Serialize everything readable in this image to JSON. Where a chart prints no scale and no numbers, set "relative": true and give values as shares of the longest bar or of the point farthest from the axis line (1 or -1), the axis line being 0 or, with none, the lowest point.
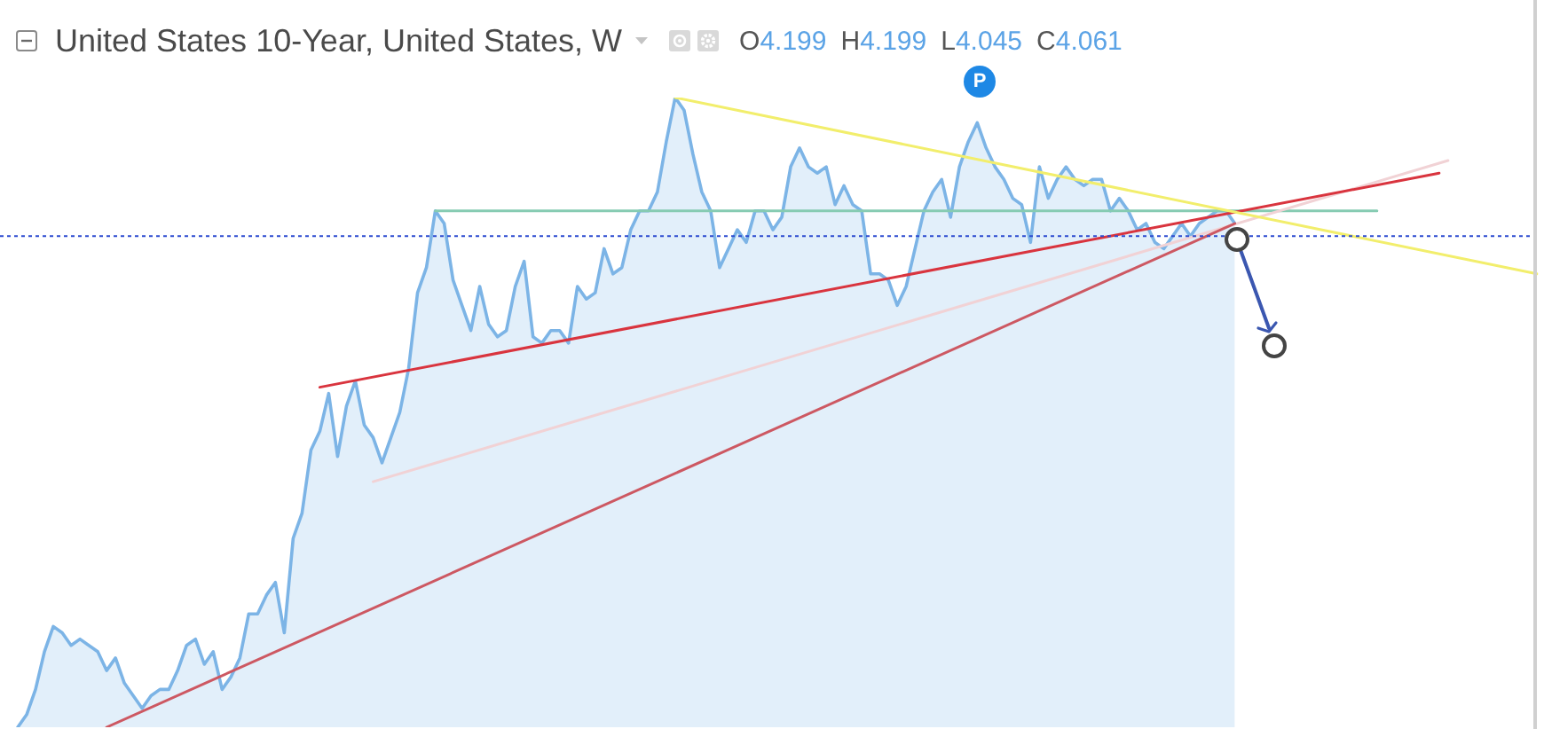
{
  "chart_data": {
    "type": "area",
    "title": "United States 10-Year, United States, W",
    "subtitle": "O4.199 H4.199 L4.045 C4.061",
    "annotations": [
      "P"
    ],
    "relative": true,
    "grid": false,
    "legend": false,
    "tick_labels": false,
    "marker": "none",
    "categories": [
      null,
      null,
      null,
      null,
      null,
      null,
      null,
      null,
      null,
      null,
      null,
      null,
      null,
      null,
      null,
      null,
      null,
      null,
      null,
      null,
      null,
      null,
      null,
      null,
      null,
      null,
      null,
      null,
      null,
      null,
      null,
      null,
      null,
      null,
      null,
      null,
      null,
      null,
      null,
      null,
      null,
      null,
      null,
      null,
      null,
      null,
      null,
      null,
      null,
      null,
      null,
      null,
      null,
      null,
      null,
      null,
      null,
      null,
      null,
      null,
      null,
      null,
      null,
      null,
      null,
      null,
      null,
      null,
      null,
      null,
      null,
      null,
      null,
      null,
      null,
      null,
      null,
      null,
      null,
      null,
      null,
      null,
      null,
      null,
      null,
      null,
      null,
      null,
      null,
      null,
      null,
      null,
      null,
      null,
      null,
      null,
      null,
      null,
      null,
      null,
      null,
      null,
      null,
      null,
      null,
      null,
      null,
      null,
      null,
      null,
      null,
      null,
      null,
      null,
      null,
      null,
      null,
      null,
      null,
      null,
      null,
      null,
      null,
      null,
      null,
      null,
      null,
      null,
      null,
      null,
      null,
      null,
      null,
      null,
      null,
      null,
      null,
      null,
      null,
      null,
      null,
      null,
      null,
      null,
      null,
      null,
      null,
      null,
      null,
      null,
      null,
      null,
      null,
      null,
      null,
      null,
      null,
      null,
      null,
      null,
      null,
      null,
      null,
      null,
      null,
      null,
      null,
      null,
      null,
      null,
      null,
      null,
      null,
      null
    ],
    "series": [
      {
        "type": "area",
        "color": "#7cb4e6",
        "values": [
          null,
          null,
          0,
          0.02,
          0.06,
          0.12,
          0.16,
          0.15,
          0.13,
          0.14,
          0.13,
          0.12,
          0.09,
          0.11,
          0.07,
          0.05,
          0.03,
          0.05,
          0.06,
          0.06,
          0.09,
          0.13,
          0.14,
          0.1,
          0.12,
          0.06,
          0.08,
          0.11,
          0.18,
          0.18,
          0.21,
          0.23,
          0.15,
          0.3,
          0.34,
          0.44,
          0.47,
          0.53,
          0.43,
          0.51,
          0.55,
          0.48,
          0.46,
          0.42,
          0.46,
          0.5,
          0.57,
          0.69,
          0.73,
          0.82,
          0.8,
          0.71,
          0.67,
          0.63,
          0.7,
          0.64,
          0.62,
          0.63,
          0.7,
          0.74,
          0.62,
          0.61,
          0.63,
          0.63,
          0.61,
          0.7,
          0.68,
          0.69,
          0.76,
          0.72,
          0.73,
          0.79,
          0.82,
          0.82,
          0.85,
          0.93,
          1,
          0.98,
          0.91,
          0.85,
          0.82,
          0.73,
          0.76,
          0.79,
          0.77,
          0.82,
          0.82,
          0.79,
          0.81,
          0.89,
          0.92,
          0.89,
          0.88,
          0.89,
          0.83,
          0.86,
          0.83,
          0.82,
          0.72,
          0.72,
          0.71,
          0.67,
          0.7,
          0.76,
          0.82,
          0.85,
          0.87,
          0.81,
          0.89,
          0.93,
          0.96,
          0.92,
          0.89,
          0.87,
          0.84,
          0.83,
          0.77,
          0.89,
          0.84,
          0.87,
          0.89,
          0.87,
          0.86,
          0.87,
          0.87,
          0.82,
          0.84,
          0.82,
          0.79,
          0.8,
          0.77,
          0.76,
          0.78,
          0.8,
          0.78,
          0.8,
          0.81,
          0.82,
          0.82,
          0.8,
          null,
          null,
          null,
          null,
          null,
          null,
          null,
          null,
          null,
          null,
          null,
          null,
          null,
          null,
          null,
          null,
          null,
          null,
          null,
          null,
          null,
          null,
          null,
          null,
          null,
          null,
          null,
          null,
          null,
          null,
          null,
          null,
          null,
          null
        ]
      },
      {
        "type": "line",
        "color": "#f2ee6c",
        "values": [
          null,
          null,
          null,
          null,
          null,
          null,
          null,
          null,
          null,
          null,
          null,
          null,
          null,
          null,
          null,
          null,
          null,
          null,
          null,
          null,
          null,
          null,
          null,
          null,
          null,
          null,
          null,
          null,
          null,
          null,
          null,
          null,
          null,
          null,
          null,
          null,
          null,
          null,
          null,
          null,
          null,
          null,
          null,
          null,
          null,
          null,
          null,
          null,
          null,
          null,
          null,
          null,
          null,
          null,
          null,
          null,
          null,
          null,
          null,
          null,
          null,
          null,
          null,
          null,
          null,
          null,
          null,
          null,
          null,
          null,
          null,
          null,
          null,
          null,
          null,
          null,
          1,
          null,
          null,
          null,
          null,
          null,
          null,
          null,
          null,
          null,
          null,
          null,
          null,
          null,
          null,
          null,
          null,
          null,
          null,
          null,
          null,
          null,
          null,
          null,
          null,
          null,
          null,
          null,
          null,
          null,
          null,
          null,
          null,
          null,
          null,
          null,
          null,
          null,
          null,
          null,
          null,
          null,
          null,
          null,
          null,
          null,
          null,
          null,
          null,
          null,
          null,
          null,
          null,
          null,
          null,
          null,
          null,
          null,
          null,
          null,
          null,
          null,
          null,
          null,
          null,
          null,
          null,
          null,
          null,
          null,
          null,
          null,
          null,
          null,
          null,
          null,
          null,
          null,
          null,
          null,
          null,
          null,
          null,
          null,
          null,
          null,
          null,
          null,
          null,
          null,
          null,
          null,
          null,
          null,
          null,
          null,
          null,
          0.72
        ]
      },
      {
        "type": "line",
        "color": "#d9343e",
        "values": [
          null,
          null,
          null,
          null,
          null,
          null,
          null,
          null,
          null,
          null,
          null,
          null,
          null,
          null,
          null,
          null,
          null,
          null,
          null,
          null,
          null,
          null,
          null,
          null,
          null,
          null,
          null,
          null,
          null,
          null,
          null,
          null,
          null,
          null,
          null,
          null,
          0.54,
          null,
          null,
          null,
          null,
          null,
          null,
          null,
          null,
          null,
          null,
          null,
          null,
          null,
          null,
          null,
          null,
          null,
          null,
          null,
          null,
          null,
          null,
          null,
          null,
          null,
          null,
          null,
          null,
          null,
          null,
          null,
          null,
          null,
          null,
          null,
          null,
          null,
          null,
          null,
          null,
          null,
          null,
          null,
          null,
          null,
          null,
          null,
          null,
          null,
          null,
          null,
          null,
          null,
          null,
          null,
          null,
          null,
          null,
          null,
          null,
          null,
          null,
          null,
          null,
          null,
          null,
          null,
          null,
          null,
          null,
          null,
          null,
          null,
          null,
          null,
          null,
          null,
          null,
          null,
          null,
          null,
          null,
          null,
          null,
          null,
          null,
          null,
          null,
          null,
          null,
          null,
          null,
          null,
          null,
          null,
          null,
          null,
          null,
          null,
          null,
          null,
          null,
          null,
          null,
          null,
          null,
          null,
          null,
          null,
          null,
          null,
          null,
          null,
          null,
          null,
          null,
          null,
          null,
          null,
          null,
          null,
          null,
          null,
          null,
          null,
          0.88,
          null,
          null,
          null,
          null,
          null,
          null,
          null,
          null,
          null,
          null,
          null
        ]
      },
      {
        "type": "line",
        "color": "#cd5862",
        "values": [
          null,
          null,
          null,
          null,
          null,
          null,
          null,
          null,
          null,
          null,
          null,
          null,
          0,
          null,
          null,
          null,
          null,
          null,
          null,
          null,
          null,
          null,
          null,
          null,
          null,
          null,
          null,
          null,
          null,
          null,
          null,
          null,
          null,
          null,
          null,
          null,
          null,
          null,
          null,
          null,
          null,
          null,
          null,
          null,
          null,
          null,
          null,
          null,
          null,
          null,
          null,
          null,
          null,
          null,
          null,
          null,
          null,
          null,
          null,
          null,
          null,
          null,
          null,
          null,
          null,
          null,
          null,
          null,
          null,
          null,
          null,
          null,
          null,
          null,
          null,
          null,
          null,
          null,
          null,
          null,
          null,
          null,
          null,
          null,
          null,
          null,
          null,
          null,
          null,
          null,
          null,
          null,
          null,
          null,
          null,
          null,
          null,
          null,
          null,
          null,
          null,
          null,
          null,
          null,
          null,
          null,
          null,
          null,
          null,
          null,
          null,
          null,
          null,
          null,
          null,
          null,
          null,
          null,
          null,
          null,
          null,
          null,
          null,
          null,
          null,
          null,
          null,
          null,
          null,
          null,
          null,
          null,
          null,
          null,
          null,
          null,
          null,
          null,
          null,
          0.8,
          null,
          null,
          null,
          null,
          null,
          null,
          null,
          null,
          null,
          null,
          null,
          null,
          null,
          null,
          null,
          null,
          null,
          null,
          null,
          null,
          null,
          null,
          null,
          null,
          null,
          null,
          null,
          null,
          null,
          null,
          null,
          null,
          null,
          null
        ]
      },
      {
        "type": "line",
        "color": "#f1d2d5",
        "values": [
          null,
          null,
          null,
          null,
          null,
          null,
          null,
          null,
          null,
          null,
          null,
          null,
          null,
          null,
          null,
          null,
          null,
          null,
          null,
          null,
          null,
          null,
          null,
          null,
          null,
          null,
          null,
          null,
          null,
          null,
          null,
          null,
          null,
          null,
          null,
          null,
          null,
          null,
          null,
          null,
          null,
          null,
          0.39,
          null,
          null,
          null,
          null,
          null,
          null,
          null,
          null,
          null,
          null,
          null,
          null,
          null,
          null,
          null,
          null,
          null,
          null,
          null,
          null,
          null,
          null,
          null,
          null,
          null,
          null,
          null,
          null,
          null,
          null,
          null,
          null,
          null,
          null,
          null,
          null,
          null,
          null,
          null,
          null,
          null,
          null,
          null,
          null,
          null,
          null,
          null,
          null,
          null,
          null,
          null,
          null,
          null,
          null,
          null,
          null,
          null,
          null,
          null,
          null,
          null,
          null,
          null,
          null,
          null,
          null,
          null,
          null,
          null,
          null,
          null,
          null,
          null,
          null,
          null,
          null,
          null,
          null,
          null,
          null,
          null,
          null,
          null,
          null,
          null,
          null,
          null,
          null,
          null,
          null,
          null,
          null,
          null,
          null,
          null,
          null,
          null,
          null,
          null,
          null,
          null,
          null,
          null,
          null,
          null,
          null,
          null,
          null,
          null,
          null,
          null,
          null,
          null,
          null,
          null,
          null,
          null,
          null,
          null,
          null,
          0.9,
          null,
          null,
          null,
          null,
          null,
          null,
          null,
          null,
          null,
          null
        ]
      },
      {
        "type": "line",
        "color": "#86cbb2",
        "values": [
          null,
          null,
          null,
          null,
          null,
          null,
          null,
          null,
          null,
          null,
          null,
          null,
          null,
          null,
          null,
          null,
          null,
          null,
          null,
          null,
          null,
          null,
          null,
          null,
          null,
          null,
          null,
          null,
          null,
          null,
          null,
          null,
          null,
          null,
          null,
          null,
          null,
          null,
          null,
          null,
          null,
          null,
          null,
          null,
          null,
          null,
          null,
          null,
          null,
          0.82,
          null,
          null,
          null,
          null,
          null,
          null,
          null,
          null,
          null,
          null,
          null,
          null,
          null,
          null,
          null,
          null,
          null,
          null,
          null,
          null,
          null,
          null,
          null,
          null,
          null,
          null,
          null,
          null,
          null,
          null,
          null,
          null,
          null,
          null,
          null,
          null,
          null,
          null,
          null,
          null,
          null,
          null,
          null,
          null,
          null,
          null,
          null,
          null,
          null,
          null,
          null,
          null,
          null,
          null,
          null,
          null,
          null,
          null,
          null,
          null,
          null,
          null,
          null,
          null,
          null,
          null,
          null,
          null,
          null,
          null,
          null,
          null,
          null,
          null,
          null,
          null,
          null,
          null,
          null,
          null,
          null,
          null,
          null,
          null,
          null,
          null,
          null,
          null,
          null,
          null,
          null,
          null,
          null,
          null,
          null,
          null,
          null,
          null,
          null,
          null,
          null,
          null,
          null,
          null,
          null,
          0.82,
          null,
          null,
          null,
          null,
          null,
          null,
          null,
          null,
          null,
          null,
          null,
          null,
          null,
          null,
          null,
          null,
          null,
          null
        ]
      }
    ],
    "ref_lines": [
      {
        "axis": "y",
        "value": 0.78,
        "color": "#2c4bd0",
        "line_style": "dotted"
      }
    ]
  }
}
